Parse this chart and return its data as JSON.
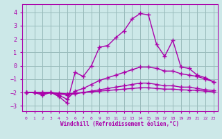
{
  "title": "",
  "xlabel": "Windchill (Refroidissement éolien,°C)",
  "x": [
    0,
    1,
    2,
    3,
    4,
    5,
    6,
    7,
    8,
    9,
    10,
    11,
    12,
    13,
    14,
    15,
    16,
    17,
    18,
    19,
    20,
    21,
    22,
    23
  ],
  "line1": [
    -2.0,
    -2.0,
    -2.2,
    -2.0,
    -2.3,
    -2.8,
    -0.5,
    -0.8,
    0.0,
    1.4,
    1.5,
    2.1,
    2.6,
    3.5,
    3.9,
    3.8,
    1.6,
    0.7,
    1.9,
    -0.1,
    -0.2,
    -0.7,
    -0.9,
    -1.2
  ],
  "line2": [
    -2.0,
    -2.0,
    -2.1,
    -2.0,
    -2.2,
    -2.5,
    -1.9,
    -1.7,
    -1.4,
    -1.1,
    -0.9,
    -0.7,
    -0.5,
    -0.3,
    -0.1,
    -0.1,
    -0.2,
    -0.4,
    -0.4,
    -0.6,
    -0.7,
    -0.8,
    -1.0,
    -1.2
  ],
  "line3": [
    -2.0,
    -2.0,
    -2.0,
    -2.0,
    -2.1,
    -2.2,
    -2.1,
    -2.0,
    -1.9,
    -1.8,
    -1.7,
    -1.6,
    -1.5,
    -1.4,
    -1.3,
    -1.3,
    -1.4,
    -1.5,
    -1.5,
    -1.6,
    -1.6,
    -1.7,
    -1.8,
    -1.85
  ],
  "line4": [
    -2.0,
    -2.0,
    -2.0,
    -2.0,
    -2.05,
    -2.1,
    -2.05,
    -2.0,
    -1.95,
    -1.9,
    -1.85,
    -1.8,
    -1.75,
    -1.7,
    -1.65,
    -1.65,
    -1.7,
    -1.75,
    -1.75,
    -1.8,
    -1.82,
    -1.85,
    -1.9,
    -1.95
  ],
  "line_color": "#aa00aa",
  "bg_color": "#cce8e8",
  "grid_color": "#99bbbb",
  "xlim": [
    -0.5,
    23.5
  ],
  "ylim": [
    -3.4,
    4.6
  ],
  "yticks": [
    -3,
    -2,
    -1,
    0,
    1,
    2,
    3,
    4
  ],
  "xtick_labels": [
    "0",
    "1",
    "2",
    "3",
    "4",
    "5",
    "6",
    "7",
    "8",
    "9",
    "10",
    "11",
    "12",
    "13",
    "14",
    "15",
    "16",
    "17",
    "18",
    "19",
    "20",
    "21",
    "22",
    "23"
  ],
  "xlabel_color": "#aa00aa",
  "tick_color": "#aa00aa",
  "marker": "+",
  "markersize": 4,
  "linewidth": 1.0
}
